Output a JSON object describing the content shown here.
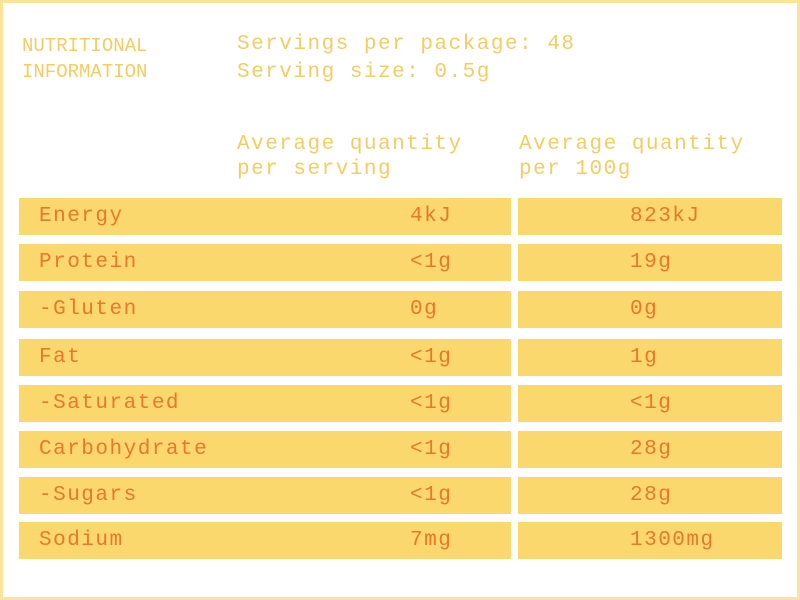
{
  "header": {
    "title": [
      "NUTRITIONAL",
      "INFORMATION"
    ],
    "servings": [
      "Servings per package: 48",
      "Serving size: 0.5g"
    ]
  },
  "table": {
    "columns": [
      [
        "Average quantity",
        "per serving"
      ],
      [
        "Average quantity",
        "per 100g"
      ]
    ],
    "rows": [
      [
        "Energy",
        "4kJ",
        "823kJ"
      ],
      [
        "Protein",
        "<1g",
        "19g"
      ],
      [
        "-Gluten",
        "0g",
        "0g"
      ],
      [
        "Fat",
        "<1g",
        "1g"
      ],
      [
        "-Saturated",
        "<1g",
        "<1g"
      ],
      [
        "Carbohydrate",
        "<1g",
        "28g"
      ],
      [
        "-Sugars",
        "<1g",
        "28g"
      ],
      [
        "Sodium",
        "7mg",
        "1300mg"
      ]
    ]
  }
}
